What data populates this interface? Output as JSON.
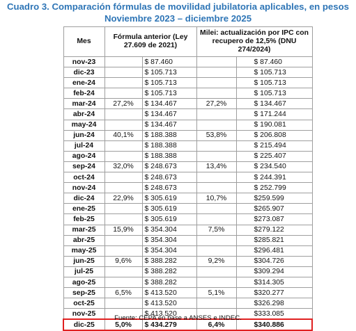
{
  "title_line1": "Cuadro 3. Comparación fórmulas de movilidad jubilatoria aplicables, en pesos",
  "title_line2": "Noviembre 2023 – diciembre 2025",
  "headers": {
    "mes": "Mes",
    "anterior": "Fórmula anterior (Ley 27.609 de 2021)",
    "milei": "Milei: actualización por IPC con recupero de 12,5% (DNU 274/2024)"
  },
  "rows": [
    {
      "mes": "nov-23",
      "p1": "",
      "v1": "$ 87.460",
      "p2": "",
      "v2": "$ 87.460"
    },
    {
      "mes": "dic-23",
      "p1": "",
      "v1": "$ 105.713",
      "p2": "",
      "v2": "$ 105.713"
    },
    {
      "mes": "ene-24",
      "p1": "",
      "v1": "$ 105.713",
      "p2": "",
      "v2": "$ 105.713"
    },
    {
      "mes": "feb-24",
      "p1": "",
      "v1": "$ 105.713",
      "p2": "",
      "v2": "$ 105.713"
    },
    {
      "mes": "mar-24",
      "p1": "27,2%",
      "v1": "$ 134.467",
      "p2": "27,2%",
      "v2": "$ 134.467"
    },
    {
      "mes": "abr-24",
      "p1": "",
      "v1": "$ 134.467",
      "p2": "",
      "v2": "$ 171.244"
    },
    {
      "mes": "may-24",
      "p1": "",
      "v1": "$ 134.467",
      "p2": "",
      "v2": "$ 190.081"
    },
    {
      "mes": "jun-24",
      "p1": "40,1%",
      "v1": "$ 188.388",
      "p2": "53,8%",
      "v2": "$ 206.808"
    },
    {
      "mes": "jul-24",
      "p1": "",
      "v1": "$ 188.388",
      "p2": "",
      "v2": "$ 215.494"
    },
    {
      "mes": "ago-24",
      "p1": "",
      "v1": "$ 188.388",
      "p2": "",
      "v2": "$ 225.407"
    },
    {
      "mes": "sep-24",
      "p1": "32,0%",
      "v1": "$ 248.673",
      "p2": "13,4%",
      "v2": "$ 234.540"
    },
    {
      "mes": "oct-24",
      "p1": "",
      "v1": "$ 248.673",
      "p2": "",
      "v2": "$ 244.391"
    },
    {
      "mes": "nov-24",
      "p1": "",
      "v1": "$ 248.673",
      "p2": "",
      "v2": "$ 252.799"
    },
    {
      "mes": "dic-24",
      "p1": "22,9%",
      "v1": "$ 305.619",
      "p2": "10,7%",
      "v2": "$259.599"
    },
    {
      "mes": "ene-25",
      "p1": "",
      "v1": "$ 305.619",
      "p2": "",
      "v2": "$265.907"
    },
    {
      "mes": "feb-25",
      "p1": "",
      "v1": "$ 305.619",
      "p2": "",
      "v2": "$273.087"
    },
    {
      "mes": "mar-25",
      "p1": "15,9%",
      "v1": "$ 354.304",
      "p2": "7,5%",
      "v2": "$279.122"
    },
    {
      "mes": "abr-25",
      "p1": "",
      "v1": "$ 354.304",
      "p2": "",
      "v2": "$285.821"
    },
    {
      "mes": "may-25",
      "p1": "",
      "v1": "$ 354.304",
      "p2": "",
      "v2": "$296.481"
    },
    {
      "mes": "jun-25",
      "p1": "9,6%",
      "v1": "$ 388.282",
      "p2": "9,2%",
      "v2": "$304.726"
    },
    {
      "mes": "jul-25",
      "p1": "",
      "v1": "$ 388.282",
      "p2": "",
      "v2": "$309.294"
    },
    {
      "mes": "ago-25",
      "p1": "",
      "v1": "$ 388.282",
      "p2": "",
      "v2": "$314.305"
    },
    {
      "mes": "sep-25",
      "p1": "6,5%",
      "v1": "$ 413.520",
      "p2": "5,1%",
      "v2": "$320.277"
    },
    {
      "mes": "oct-25",
      "p1": "",
      "v1": "$ 413.520",
      "p2": "",
      "v2": "$326.298"
    },
    {
      "mes": "nov-25",
      "p1": "",
      "v1": "$ 413.520",
      "p2": "",
      "v2": "$333.085"
    }
  ],
  "last_row": {
    "mes": "dic-25",
    "p1": "5,0%",
    "v1": "$ 434.279",
    "p2": "6,4%",
    "v2": "$340.886"
  },
  "highlight_color": "#e02020",
  "title_color": "#2e75b6",
  "source": "Fuente: CEPA en base a ANSES e INDEC."
}
